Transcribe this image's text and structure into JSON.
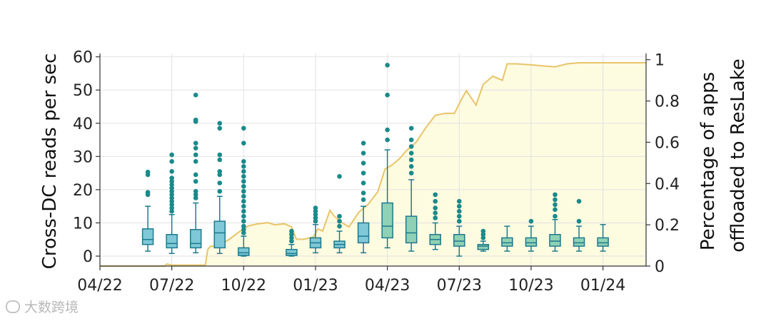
{
  "chart_data": {
    "type": "box+area",
    "ylabel_left": "Cross-DC reads per sec",
    "ylabel_right_lines": [
      "Percentage of apps",
      "offloaded to ResLake"
    ],
    "ylim_left": [
      -3,
      61
    ],
    "ylim_right": [
      0,
      1.03
    ],
    "yticks_left": [
      "0",
      "10",
      "20",
      "30",
      "40",
      "50",
      "60"
    ],
    "yticks_right": [
      "0",
      "0.2",
      "0.4",
      "0.6",
      "0.8",
      "1"
    ],
    "x_range_months": [
      0,
      22.8
    ],
    "xticks": [
      {
        "label": "04/22",
        "m": 0
      },
      {
        "label": "07/22",
        "m": 3
      },
      {
        "label": "10/22",
        "m": 6
      },
      {
        "label": "01/23",
        "m": 9
      },
      {
        "label": "04/23",
        "m": 12
      },
      {
        "label": "07/23",
        "m": 15
      },
      {
        "label": "10/23",
        "m": 18
      },
      {
        "label": "01/24",
        "m": 21
      }
    ],
    "grid": true,
    "colors": {
      "box_blue": "#7ec8d8",
      "box_green": "#8fd1b4",
      "box_edge": "#1f7a8c",
      "outlier": "#1b8a8a",
      "line": "#e8c468",
      "area": "#fdfbe0"
    },
    "boxes": [
      {
        "m": 2.0,
        "q1": 3.5,
        "med": 5.0,
        "q3": 8.2,
        "wlo": 1.5,
        "whi": 15,
        "out": [
          18.5,
          19.2,
          24.5,
          25.3
        ],
        "color": "blue"
      },
      {
        "m": 3.0,
        "q1": 2.5,
        "med": 3.8,
        "q3": 6.5,
        "wlo": 0.8,
        "whi": 12.5,
        "out": [
          13.5,
          14.5,
          15.5,
          16.5,
          17.5,
          18.5,
          19.5,
          20.5,
          21.5,
          22.5,
          23.5,
          25.5,
          28.5,
          30.5
        ],
        "color": "blue"
      },
      {
        "m": 4.0,
        "q1": 2.5,
        "med": 3.8,
        "q3": 8.0,
        "wlo": 1.0,
        "whi": 16,
        "out": [
          17.5,
          18.5,
          19.5,
          22.5,
          24.5,
          28.5,
          30.5,
          32.5,
          34,
          40.5,
          41,
          48.5
        ],
        "color": "blue"
      },
      {
        "m": 5.0,
        "q1": 2.5,
        "med": 7.0,
        "q3": 10.5,
        "wlo": 0.8,
        "whi": 18,
        "out": [
          19.5,
          22,
          24.5,
          25.5,
          29,
          30.5,
          38.5,
          40
        ],
        "color": "blue"
      },
      {
        "m": 6.0,
        "q1": 0.2,
        "med": 1.0,
        "q3": 2.5,
        "wlo": 0,
        "whi": 6,
        "out": [
          7,
          8,
          9,
          10.5,
          12,
          13.5,
          15,
          16.5,
          18,
          19.5,
          21,
          22.5,
          24,
          25.5,
          27,
          28.5,
          34,
          38.5
        ],
        "color": "blue"
      },
      {
        "m": 8.0,
        "q1": 0.2,
        "med": 0.8,
        "q3": 2.0,
        "wlo": 0,
        "whi": 3.5,
        "out": [
          4.5,
          5.5,
          6.5,
          7.5
        ],
        "color": "blue"
      },
      {
        "m": 9.0,
        "q1": 2.5,
        "med": 4.0,
        "q3": 5.5,
        "wlo": 1.0,
        "whi": 9.5,
        "out": [
          10.5,
          11.5,
          12.5,
          13.5,
          14.5
        ],
        "color": "blue"
      },
      {
        "m": 10.0,
        "q1": 2.5,
        "med": 3.5,
        "q3": 4.5,
        "wlo": 1.0,
        "whi": 7.5,
        "out": [
          9,
          10.5,
          12,
          24
        ],
        "color": "blue"
      },
      {
        "m": 11.0,
        "q1": 4.0,
        "med": 6.0,
        "q3": 10.0,
        "wlo": 1.0,
        "whi": 15,
        "out": [
          17,
          19,
          22,
          25,
          28,
          31,
          34
        ],
        "color": "blue"
      },
      {
        "m": 12.0,
        "q1": 5.5,
        "med": 9.0,
        "q3": 16.0,
        "wlo": 2.5,
        "whi": 32,
        "out": [
          35,
          38,
          48.5,
          57.5
        ],
        "color": "green"
      },
      {
        "m": 13.0,
        "q1": 4.0,
        "med": 7.0,
        "q3": 12.0,
        "wlo": 1.5,
        "whi": 23,
        "out": [
          25,
          27,
          29,
          31,
          33,
          35,
          38.5
        ],
        "color": "green"
      },
      {
        "m": 14.0,
        "q1": 3.5,
        "med": 5.0,
        "q3": 6.5,
        "wlo": 2.0,
        "whi": 10,
        "out": [
          11.5,
          13,
          14.5,
          16.5,
          18.5
        ],
        "color": "green"
      },
      {
        "m": 15.0,
        "q1": 3.0,
        "med": 4.5,
        "q3": 6.5,
        "wlo": 0,
        "whi": 9,
        "out": [
          10.5,
          12,
          13.5,
          15,
          16.5
        ],
        "color": "green"
      },
      {
        "m": 16.0,
        "q1": 2.0,
        "med": 3.0,
        "q3": 3.5,
        "wlo": 1.5,
        "whi": 4.5,
        "out": [
          5.5,
          6.5,
          7.5
        ],
        "color": "green"
      },
      {
        "m": 17.0,
        "q1": 3.0,
        "med": 4.0,
        "q3": 5.5,
        "wlo": 1.5,
        "whi": 9,
        "out": [],
        "color": "green"
      },
      {
        "m": 18.0,
        "q1": 3.0,
        "med": 4.0,
        "q3": 5.5,
        "wlo": 1.5,
        "whi": 9,
        "out": [
          10.5
        ],
        "color": "green"
      },
      {
        "m": 19.0,
        "q1": 3.0,
        "med": 4.5,
        "q3": 6.5,
        "wlo": 1.5,
        "whi": 11,
        "out": [
          12,
          14,
          15.5,
          17,
          18.5
        ],
        "color": "green"
      },
      {
        "m": 20.0,
        "q1": 3.0,
        "med": 4.0,
        "q3": 5.5,
        "wlo": 1.5,
        "whi": 9,
        "out": [
          10.5,
          16.5
        ],
        "color": "green"
      },
      {
        "m": 21.0,
        "q1": 3.0,
        "med": 4.0,
        "q3": 5.5,
        "wlo": 1.5,
        "whi": 9.5,
        "out": [],
        "color": "green"
      }
    ],
    "offload_line": [
      [
        0,
        0
      ],
      [
        2.7,
        0
      ],
      [
        2.8,
        0.01
      ],
      [
        3.0,
        0.005
      ],
      [
        3.3,
        0.005
      ],
      [
        4.4,
        0.005
      ],
      [
        4.5,
        0.08
      ],
      [
        4.6,
        0.095
      ],
      [
        5.0,
        0.1
      ],
      [
        5.4,
        0.13
      ],
      [
        5.8,
        0.165
      ],
      [
        6.2,
        0.195
      ],
      [
        6.6,
        0.205
      ],
      [
        7.0,
        0.21
      ],
      [
        7.3,
        0.2
      ],
      [
        7.7,
        0.205
      ],
      [
        8.0,
        0.19
      ],
      [
        8.2,
        0.13
      ],
      [
        8.5,
        0.13
      ],
      [
        8.9,
        0.14
      ],
      [
        9.1,
        0.18
      ],
      [
        9.3,
        0.17
      ],
      [
        9.6,
        0.27
      ],
      [
        9.8,
        0.24
      ],
      [
        10.1,
        0.21
      ],
      [
        10.4,
        0.19
      ],
      [
        10.8,
        0.26
      ],
      [
        11.2,
        0.3
      ],
      [
        11.6,
        0.36
      ],
      [
        11.9,
        0.47
      ],
      [
        12.2,
        0.49
      ],
      [
        12.5,
        0.52
      ],
      [
        12.8,
        0.56
      ],
      [
        13.2,
        0.6
      ],
      [
        13.6,
        0.67
      ],
      [
        14.0,
        0.73
      ],
      [
        14.4,
        0.74
      ],
      [
        14.8,
        0.74
      ],
      [
        15.1,
        0.81
      ],
      [
        15.3,
        0.85
      ],
      [
        15.7,
        0.78
      ],
      [
        16.0,
        0.88
      ],
      [
        16.4,
        0.92
      ],
      [
        16.8,
        0.9
      ],
      [
        17.0,
        0.98
      ],
      [
        17.4,
        0.98
      ],
      [
        18.0,
        0.975
      ],
      [
        18.5,
        0.97
      ],
      [
        19.0,
        0.965
      ],
      [
        19.5,
        0.98
      ],
      [
        20.0,
        0.985
      ],
      [
        21.0,
        0.985
      ],
      [
        22.0,
        0.985
      ],
      [
        22.8,
        0.985
      ]
    ]
  },
  "watermark": "大数跨境"
}
